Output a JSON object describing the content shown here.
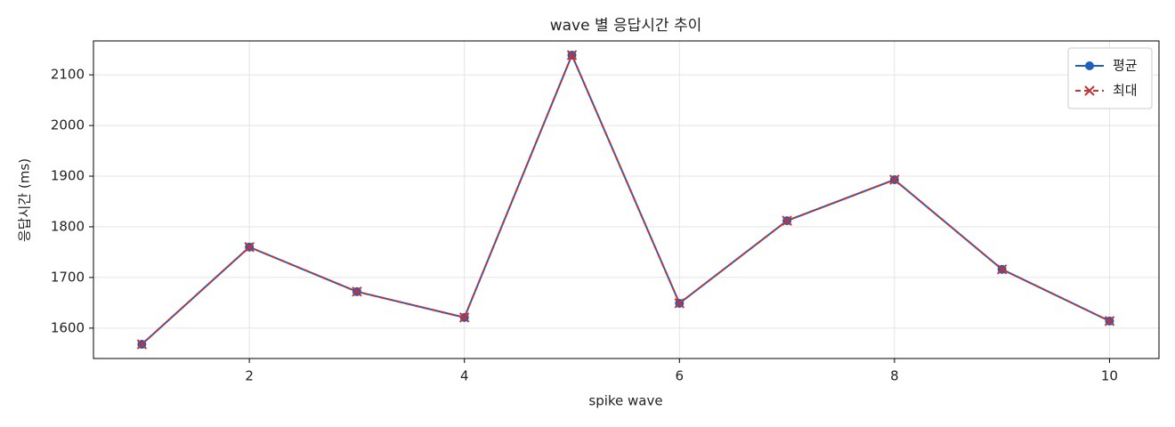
{
  "chart_data": {
    "type": "line",
    "title": "wave 별 응답시간 추이",
    "xlabel": "spike wave",
    "ylabel": "응답시간 (ms)",
    "x": [
      1,
      2,
      3,
      4,
      5,
      6,
      7,
      8,
      9,
      10
    ],
    "series": [
      {
        "name": "평균",
        "color": "#1f5fbf",
        "linestyle": "solid",
        "marker": "o",
        "values": [
          1568,
          1760,
          1672,
          1621,
          2139,
          1649,
          1812,
          1893,
          1716,
          1614
        ]
      },
      {
        "name": "최대",
        "color": "#c83232",
        "linestyle": "dashed",
        "marker": "x",
        "values": [
          1568,
          1760,
          1672,
          1621,
          2139,
          1649,
          1812,
          1893,
          1716,
          1614
        ]
      }
    ],
    "xlim": [
      0.55,
      10.46
    ],
    "xticks": [
      2,
      4,
      6,
      8,
      10
    ],
    "ylim": [
      1540,
      2167
    ],
    "yticks": [
      1600,
      1700,
      1800,
      1900,
      2000,
      2100
    ],
    "grid": true,
    "legend": "upper right"
  }
}
